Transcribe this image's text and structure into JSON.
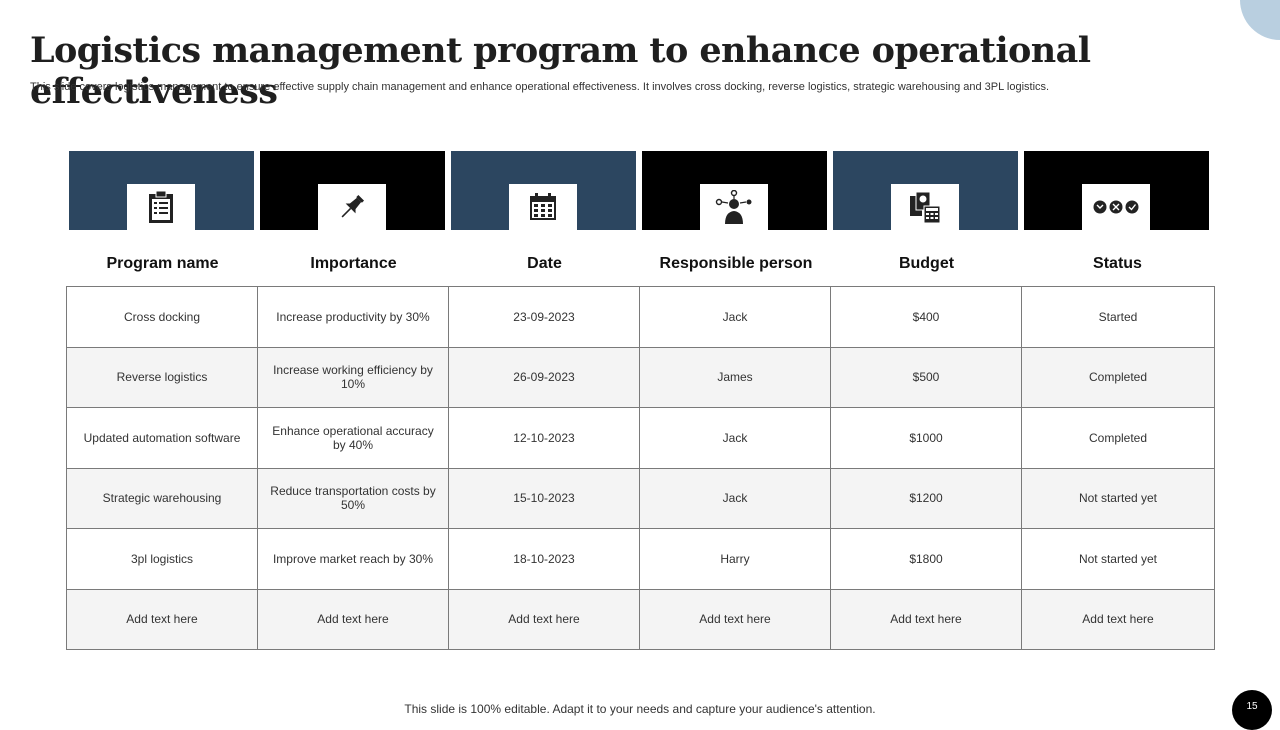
{
  "title": "Logistics management program to enhance operational effectiveness",
  "subtitle": "This slide covers logistics  management to ensure effective supply chain management and  enhance operational effectiveness. It involves cross docking, reverse logistics, strategic warehousing and 3PL logistics.",
  "colors": {
    "blue": "#2c4660",
    "black": "#000000",
    "accent_circle": "#b9cfe0"
  },
  "headers": [
    {
      "label": "Program name",
      "icon": "clipboard-checklist-icon",
      "color": "blue"
    },
    {
      "label": "Importance",
      "icon": "pushpin-icon",
      "color": "black"
    },
    {
      "label": "Date",
      "icon": "calendar-icon",
      "color": "blue"
    },
    {
      "label": "Responsible person",
      "icon": "person-network-icon",
      "color": "black"
    },
    {
      "label": "Budget",
      "icon": "money-calculator-icon",
      "color": "blue"
    },
    {
      "label": "Status",
      "icon": "status-circles-icon",
      "color": "black"
    }
  ],
  "rows": [
    [
      "Cross docking",
      "Increase productivity by 30%",
      "23-09-2023",
      "Jack",
      "$400",
      "Started"
    ],
    [
      "Reverse logistics",
      "Increase working efficiency by 10%",
      "26-09-2023",
      "James",
      "$500",
      "Completed"
    ],
    [
      "Updated automation software",
      "Enhance operational accuracy by 40%",
      "12-10-2023",
      "Jack",
      "$1000",
      "Completed"
    ],
    [
      "Strategic warehousing",
      "Reduce transportation costs by 50%",
      "15-10-2023",
      "Jack",
      "$1200",
      "Not started yet"
    ],
    [
      "3pl logistics",
      "Improve market reach by 30%",
      "18-10-2023",
      "Harry",
      "$1800",
      "Not started yet"
    ],
    [
      "Add text here",
      "Add text here",
      "Add text here",
      "Add text here",
      "Add text here",
      "Add text here"
    ]
  ],
  "footer": "This slide is 100% editable. Adapt it to your needs and capture your audience's attention.",
  "page_number": "15"
}
